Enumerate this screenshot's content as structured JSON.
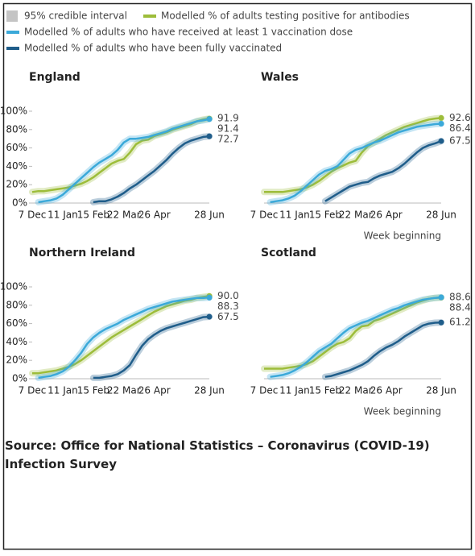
{
  "interval_label": "95% credible interval",
  "source": "Source: Office for National Statistics – Coronavirus (COVID-19) Infection Survey",
  "chart_data": [
    {
      "type": "line",
      "title": "England",
      "categories": [
        "7 Dec",
        null,
        null,
        null,
        null,
        "11 Jan",
        null,
        null,
        null,
        null,
        "15 Feb",
        null,
        null,
        null,
        null,
        "22 Mar",
        null,
        null,
        null,
        null,
        "26 Apr",
        null,
        null,
        null,
        null,
        null,
        null,
        null,
        null,
        "28 Jun"
      ],
      "ylim": [
        0,
        100
      ],
      "yticks": [
        {
          "value": 0,
          "label": "0%"
        },
        {
          "value": 20,
          "label": "20%"
        },
        {
          "value": 40,
          "label": "40%"
        },
        {
          "value": 60,
          "label": "60%"
        },
        {
          "value": 80,
          "label": "80%"
        },
        {
          "value": 100,
          "label": "100%"
        }
      ],
      "series": [
        {
          "name": "Modelled % of adults testing positive for antibodies",
          "color": "#9dbd3a",
          "values": [
            12,
            13,
            13,
            14,
            15,
            16,
            17,
            19,
            21,
            24,
            28,
            33,
            38,
            43,
            46,
            48,
            55,
            64,
            68,
            69,
            73,
            75,
            77,
            80,
            82,
            84,
            86,
            89,
            91,
            91.9
          ],
          "value_labels": [
            null,
            null,
            null,
            null,
            null,
            null,
            null,
            null,
            null,
            null,
            null,
            null,
            null,
            null,
            null,
            null,
            null,
            null,
            null,
            null,
            null,
            null,
            null,
            null,
            null,
            null,
            null,
            null,
            null,
            "91.9"
          ]
        },
        {
          "name": "Modelled % of adults who have received at least 1 vaccination dose",
          "color": "#3ba9d9",
          "values": [
            null,
            1,
            2,
            3,
            5,
            9,
            15,
            21,
            27,
            33,
            39,
            44,
            48,
            52,
            58,
            66,
            70,
            70,
            71,
            72,
            74,
            76,
            78,
            81,
            83,
            85,
            87,
            89,
            90,
            91.4
          ],
          "value_labels": [
            null,
            null,
            null,
            null,
            null,
            null,
            null,
            null,
            null,
            null,
            null,
            null,
            null,
            null,
            null,
            null,
            null,
            null,
            null,
            null,
            null,
            null,
            null,
            null,
            null,
            null,
            null,
            null,
            null,
            "91.4"
          ]
        },
        {
          "name": "Modelled % of adults who have been fully vaccinated",
          "color": "#1f5d8a",
          "values": [
            null,
            null,
            null,
            null,
            null,
            null,
            null,
            null,
            null,
            null,
            1,
            2,
            2,
            4,
            7,
            11,
            16,
            20,
            25,
            30,
            35,
            41,
            47,
            54,
            60,
            65,
            68,
            70,
            72,
            72.7
          ],
          "value_labels": [
            null,
            null,
            null,
            null,
            null,
            null,
            null,
            null,
            null,
            null,
            null,
            null,
            null,
            null,
            null,
            null,
            null,
            null,
            null,
            null,
            null,
            null,
            null,
            null,
            null,
            null,
            null,
            null,
            null,
            "72.7"
          ]
        }
      ]
    },
    {
      "type": "line",
      "title": "Wales",
      "x_label": "Week beginning",
      "categories": [
        "7 Dec",
        null,
        null,
        null,
        null,
        "11 Jan",
        null,
        null,
        null,
        null,
        "15 Feb",
        null,
        null,
        null,
        null,
        "22 Mar",
        null,
        null,
        null,
        null,
        "26 Apr",
        null,
        null,
        null,
        null,
        null,
        null,
        null,
        null,
        "28 Jun"
      ],
      "ylim": [
        0,
        100
      ],
      "series": [
        {
          "color": "#9dbd3a",
          "values": [
            12,
            12,
            12,
            12,
            13,
            14,
            15,
            17,
            20,
            24,
            29,
            34,
            38,
            41,
            44,
            46,
            55,
            62,
            66,
            70,
            74,
            77,
            80,
            83,
            85,
            87,
            89,
            91,
            92,
            92.6
          ],
          "value_labels": [
            null,
            null,
            null,
            null,
            null,
            null,
            null,
            null,
            null,
            null,
            null,
            null,
            null,
            null,
            null,
            null,
            null,
            null,
            null,
            null,
            null,
            null,
            null,
            null,
            null,
            null,
            null,
            null,
            null,
            "92.6"
          ]
        },
        {
          "color": "#3ba9d9",
          "values": [
            null,
            1,
            2,
            3,
            5,
            8,
            13,
            19,
            25,
            31,
            35,
            37,
            40,
            47,
            54,
            58,
            60,
            63,
            66,
            68,
            71,
            74,
            77,
            79,
            81,
            83,
            84,
            85,
            86,
            86.4
          ],
          "value_labels": [
            null,
            null,
            null,
            null,
            null,
            null,
            null,
            null,
            null,
            null,
            null,
            null,
            null,
            null,
            null,
            null,
            null,
            null,
            null,
            null,
            null,
            null,
            null,
            null,
            null,
            null,
            null,
            null,
            null,
            "86.4"
          ]
        },
        {
          "color": "#1f5d8a",
          "values": [
            null,
            null,
            null,
            null,
            null,
            null,
            null,
            null,
            null,
            null,
            2,
            6,
            10,
            14,
            18,
            20,
            22,
            23,
            27,
            30,
            32,
            34,
            38,
            43,
            49,
            55,
            60,
            63,
            65,
            67.5
          ],
          "value_labels": [
            null,
            null,
            null,
            null,
            null,
            null,
            null,
            null,
            null,
            null,
            null,
            null,
            null,
            null,
            null,
            null,
            null,
            null,
            null,
            null,
            null,
            null,
            null,
            null,
            null,
            null,
            null,
            null,
            null,
            "67.5"
          ]
        }
      ]
    },
    {
      "type": "line",
      "title": "Northern Ireland",
      "categories": [
        "7 Dec",
        null,
        null,
        null,
        null,
        "11 Jan",
        null,
        null,
        null,
        null,
        "15 Feb",
        null,
        null,
        null,
        null,
        "22 Mar",
        null,
        null,
        null,
        null,
        "26 Apr",
        null,
        null,
        null,
        null,
        null,
        null,
        null,
        null,
        "28 Jun"
      ],
      "ylim": [
        0,
        100
      ],
      "yticks": [
        {
          "value": 0,
          "label": "0%"
        },
        {
          "value": 20,
          "label": "20%"
        },
        {
          "value": 40,
          "label": "40%"
        },
        {
          "value": 60,
          "label": "60%"
        },
        {
          "value": 80,
          "label": "80%"
        },
        {
          "value": 100,
          "label": "100%"
        }
      ],
      "series": [
        {
          "color": "#9dbd3a",
          "values": [
            6,
            6,
            7,
            8,
            9,
            11,
            13,
            16,
            20,
            25,
            30,
            35,
            40,
            45,
            49,
            53,
            57,
            61,
            65,
            69,
            73,
            76,
            79,
            81,
            83,
            85,
            86,
            88,
            89,
            90
          ],
          "value_labels": [
            null,
            null,
            null,
            null,
            null,
            null,
            null,
            null,
            null,
            null,
            null,
            null,
            null,
            null,
            null,
            null,
            null,
            null,
            null,
            null,
            null,
            null,
            null,
            null,
            null,
            null,
            null,
            null,
            null,
            "90.0"
          ]
        },
        {
          "color": "#3ba9d9",
          "values": [
            null,
            1,
            2,
            3,
            5,
            8,
            13,
            20,
            28,
            38,
            45,
            50,
            54,
            57,
            60,
            64,
            67,
            70,
            73,
            76,
            78,
            80,
            82,
            84,
            85,
            86,
            87,
            88,
            88,
            88.3
          ],
          "value_labels": [
            null,
            null,
            null,
            null,
            null,
            null,
            null,
            null,
            null,
            null,
            null,
            null,
            null,
            null,
            null,
            null,
            null,
            null,
            null,
            null,
            null,
            null,
            null,
            null,
            null,
            null,
            null,
            null,
            null,
            "88.3"
          ]
        },
        {
          "color": "#1f5d8a",
          "values": [
            null,
            null,
            null,
            null,
            null,
            null,
            null,
            null,
            null,
            null,
            1,
            1,
            2,
            3,
            5,
            9,
            15,
            26,
            36,
            43,
            48,
            52,
            55,
            57,
            59,
            61,
            63,
            65,
            67,
            67.5
          ],
          "value_labels": [
            null,
            null,
            null,
            null,
            null,
            null,
            null,
            null,
            null,
            null,
            null,
            null,
            null,
            null,
            null,
            null,
            null,
            null,
            null,
            null,
            null,
            null,
            null,
            null,
            null,
            null,
            null,
            null,
            null,
            "67.5"
          ]
        }
      ]
    },
    {
      "type": "line",
      "title": "Scotland",
      "x_label": "Week beginning",
      "categories": [
        "7 Dec",
        null,
        null,
        null,
        null,
        "11 Jan",
        null,
        null,
        null,
        null,
        "15 Feb",
        null,
        null,
        null,
        null,
        "22 Mar",
        null,
        null,
        null,
        null,
        "26 Apr",
        null,
        null,
        null,
        null,
        null,
        null,
        null,
        null,
        "28 Jun"
      ],
      "ylim": [
        0,
        100
      ],
      "series": [
        {
          "color": "#9dbd3a",
          "values": [
            11,
            11,
            11,
            11,
            12,
            13,
            14,
            16,
            19,
            24,
            29,
            34,
            38,
            40,
            44,
            52,
            57,
            58,
            63,
            65,
            68,
            71,
            74,
            77,
            80,
            83,
            85,
            87,
            88,
            88.4
          ],
          "value_labels": [
            null,
            null,
            null,
            null,
            null,
            null,
            null,
            null,
            null,
            null,
            null,
            null,
            null,
            null,
            null,
            null,
            null,
            null,
            null,
            null,
            null,
            null,
            null,
            null,
            null,
            null,
            null,
            null,
            null,
            "88.4"
          ]
        },
        {
          "color": "#3ba9d9",
          "values": [
            null,
            2,
            3,
            4,
            6,
            9,
            13,
            18,
            24,
            30,
            34,
            38,
            44,
            50,
            55,
            58,
            61,
            63,
            66,
            69,
            72,
            75,
            77,
            80,
            82,
            84,
            86,
            87,
            88,
            88.6
          ],
          "value_labels": [
            null,
            null,
            null,
            null,
            null,
            null,
            null,
            null,
            null,
            null,
            null,
            null,
            null,
            null,
            null,
            null,
            null,
            null,
            null,
            null,
            null,
            null,
            null,
            null,
            null,
            null,
            null,
            null,
            null,
            "88.6"
          ]
        },
        {
          "color": "#1f5d8a",
          "values": [
            null,
            null,
            null,
            null,
            null,
            null,
            null,
            null,
            null,
            null,
            2,
            3,
            5,
            7,
            9,
            12,
            15,
            19,
            25,
            30,
            34,
            37,
            41,
            46,
            50,
            54,
            58,
            60,
            61,
            61.2
          ],
          "value_labels": [
            null,
            null,
            null,
            null,
            null,
            null,
            null,
            null,
            null,
            null,
            null,
            null,
            null,
            null,
            null,
            null,
            null,
            null,
            null,
            null,
            null,
            null,
            null,
            null,
            null,
            null,
            null,
            null,
            null,
            "61.2"
          ]
        }
      ]
    }
  ]
}
